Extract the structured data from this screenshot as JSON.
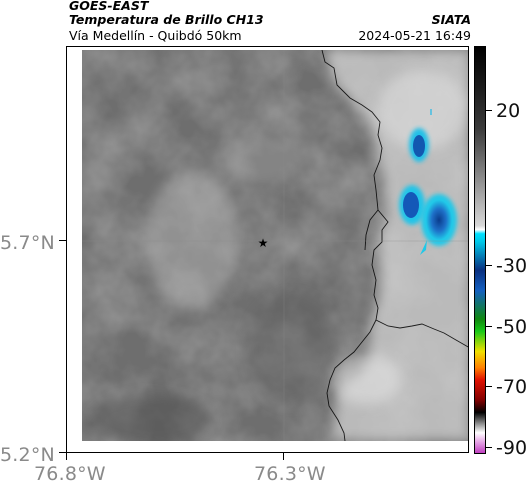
{
  "header": {
    "satellite": "GOES-EAST",
    "product": "Temperatura de Brillo CH13",
    "route": "Vía Medellín - Quibdó 50km",
    "organization": "SIATA",
    "timestamp": "2024-05-21 16:49"
  },
  "axes": {
    "y_labels": [
      "5.7°N",
      "5.2°N"
    ],
    "x_labels": [
      "76.8°W",
      "76.3°W"
    ]
  },
  "marker": {
    "icon": "star-icon"
  },
  "colorbar": {
    "labels": [
      "20",
      "-30",
      "-50",
      "-70",
      "-90"
    ],
    "colors": {
      "warm_bottom": "#3a3a3a",
      "warm_top": "#d8d8d8",
      "cold_cyan": "#00c8e8",
      "cold_blue": "#1460c0",
      "green": "#18c818",
      "yellow": "#f0e000",
      "red": "#e01000",
      "black": "#000000",
      "magenta": "#c040c0"
    }
  }
}
